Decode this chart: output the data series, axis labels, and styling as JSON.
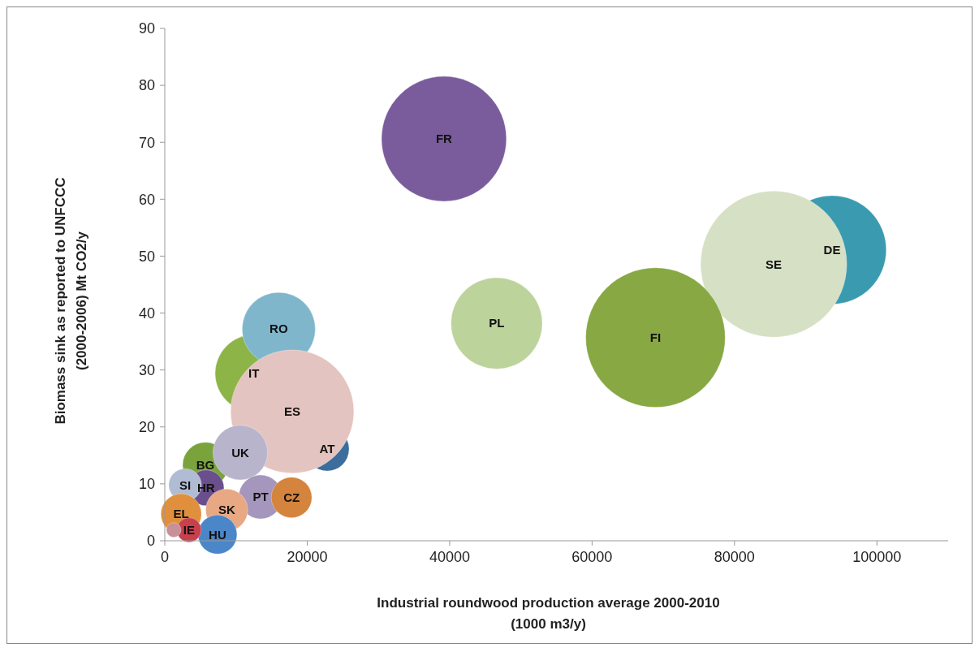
{
  "chart_data": {
    "type": "bubble",
    "xlabel": "Industrial roundwood production average 2000-2010\n(1000 m3/y)",
    "ylabel": "Biomass sink as reported to UNFCCC\n(2000-2006)  Mt CO2/y",
    "xlim": [
      0,
      110000
    ],
    "xticks": [
      0,
      20000,
      40000,
      60000,
      80000,
      100000
    ],
    "ylim": [
      0,
      90
    ],
    "yticks": [
      0,
      10,
      20,
      30,
      40,
      50,
      60,
      70,
      80,
      90
    ],
    "grid": false,
    "series": [
      {
        "name": "DE",
        "color": "#3a9bb0",
        "x": [
          93700
        ],
        "values": [
          51.1
        ],
        "sizes": [
          0.55
        ]
      },
      {
        "name": "SE",
        "color": "#d6e0c4",
        "x": [
          85500
        ],
        "values": [
          48.6
        ],
        "sizes": [
          1
        ]
      },
      {
        "name": "FI",
        "color": "#88a844",
        "x": [
          68900
        ],
        "values": [
          35.7
        ],
        "sizes": [
          0.91
        ]
      },
      {
        "name": "PL",
        "color": "#bcd39c",
        "x": [
          46600
        ],
        "values": [
          38.2
        ],
        "sizes": [
          0.39
        ]
      },
      {
        "name": "FR",
        "color": "#7a5c9c",
        "x": [
          39200
        ],
        "values": [
          70.6
        ],
        "sizes": [
          0.73
        ]
      },
      {
        "name": "IT",
        "color": "#8db446",
        "x": [
          12500
        ],
        "values": [
          29.4
        ],
        "sizes": [
          0.28
        ]
      },
      {
        "name": "RO",
        "color": "#7fb6cc",
        "x": [
          16000
        ],
        "values": [
          37.2
        ],
        "sizes": [
          0.25
        ]
      },
      {
        "name": "AT",
        "color": "#3b6e9c",
        "x": [
          22800
        ],
        "values": [
          16.1
        ],
        "sizes": [
          0.09
        ]
      },
      {
        "name": "ES",
        "color": "#e4c4c0",
        "x": [
          17900
        ],
        "values": [
          22.7
        ],
        "sizes": [
          0.71
        ]
      },
      {
        "name": "BG",
        "color": "#7aa33c",
        "x": [
          5700
        ],
        "values": [
          13.3
        ],
        "sizes": [
          0.097
        ]
      },
      {
        "name": "UK",
        "color": "#b8b4cc",
        "x": [
          10600
        ],
        "values": [
          15.5
        ],
        "sizes": [
          0.14
        ]
      },
      {
        "name": "HR",
        "color": "#6a4f8c",
        "x": [
          5800
        ],
        "values": [
          9.3
        ],
        "sizes": [
          0.06
        ]
      },
      {
        "name": "SI",
        "color": "#b0bcd4",
        "x": [
          2850
        ],
        "values": [
          9.8
        ],
        "sizes": [
          0.05
        ]
      },
      {
        "name": "PT",
        "color": "#a496bc",
        "x": [
          13450
        ],
        "values": [
          7.7
        ],
        "sizes": [
          0.09
        ]
      },
      {
        "name": "CZ",
        "color": "#d4843c",
        "x": [
          17800
        ],
        "values": [
          7.6
        ],
        "sizes": [
          0.077
        ]
      },
      {
        "name": "SK",
        "color": "#e8a884",
        "x": [
          8700
        ],
        "values": [
          5.4
        ],
        "sizes": [
          0.083
        ]
      },
      {
        "name": "HU",
        "color": "#4a86c8",
        "x": [
          7400
        ],
        "values": [
          1.1
        ],
        "sizes": [
          0.071
        ]
      },
      {
        "name": "EL",
        "color": "#e0903c",
        "x": [
          2300
        ],
        "values": [
          4.7
        ],
        "sizes": [
          0.077
        ]
      },
      {
        "name": "IE",
        "color": "#c8404c",
        "x": [
          3400
        ],
        "values": [
          1.9
        ],
        "sizes": [
          0.028
        ]
      },
      {
        "color": "#c89098",
        "x": [
          1250
        ],
        "values": [
          1.9
        ],
        "sizes": [
          0.01
        ]
      }
    ]
  }
}
